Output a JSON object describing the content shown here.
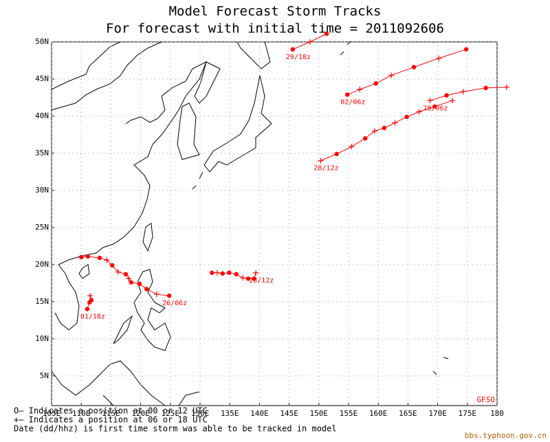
{
  "chart_data": {
    "type": "line",
    "title": "Model Forecast Storm Tracks",
    "subtitle": "For forecast with initial time = 2011092606",
    "xlim": [
      105,
      180
    ],
    "ylim": [
      1,
      50
    ],
    "xticks": [
      {
        "value": 105,
        "label": "105E"
      },
      {
        "value": 110,
        "label": "110E"
      },
      {
        "value": 115,
        "label": "115E"
      },
      {
        "value": 120,
        "label": "120E"
      },
      {
        "value": 125,
        "label": "125E"
      },
      {
        "value": 130,
        "label": "130E"
      },
      {
        "value": 135,
        "label": "135E"
      },
      {
        "value": 140,
        "label": "140E"
      },
      {
        "value": 145,
        "label": "145E"
      },
      {
        "value": 150,
        "label": "150E"
      },
      {
        "value": 155,
        "label": "155E"
      },
      {
        "value": 160,
        "label": "160E"
      },
      {
        "value": 165,
        "label": "165E"
      },
      {
        "value": 170,
        "label": "170E"
      },
      {
        "value": 175,
        "label": "175E"
      },
      {
        "value": 180,
        "label": "180"
      }
    ],
    "yticks": [
      {
        "value": 5,
        "label": "5N"
      },
      {
        "value": 10,
        "label": "10N"
      },
      {
        "value": 15,
        "label": "15N"
      },
      {
        "value": 20,
        "label": "20N"
      },
      {
        "value": 25,
        "label": "25N"
      },
      {
        "value": 30,
        "label": "30N"
      },
      {
        "value": 35,
        "label": "35N"
      },
      {
        "value": 40,
        "label": "40N"
      },
      {
        "value": 45,
        "label": "45N"
      },
      {
        "value": 50,
        "label": "50N"
      }
    ],
    "grid": true,
    "series": [
      {
        "label": "29/18z",
        "color": "#ff0000",
        "x": [
          145.6,
          148.5,
          151.3
        ],
        "values": [
          49.0,
          50.0,
          51.1
        ],
        "markers": [
          "dot",
          "plus",
          "dot"
        ]
      },
      {
        "label": "02/06z",
        "color": "#ff0000",
        "x": [
          154.8,
          156.9,
          159.6,
          162.2,
          166.0,
          170.2,
          174.8
        ],
        "values": [
          42.9,
          43.6,
          44.4,
          45.5,
          46.6,
          47.8,
          49.0
        ],
        "markers": [
          "dot",
          "plus",
          "dot",
          "plus",
          "dot",
          "plus",
          "dot"
        ]
      },
      {
        "label": "28/12z",
        "color": "#ff0000",
        "x": [
          150.3,
          153.0,
          155.5,
          157.8,
          159.4,
          161.0,
          162.8,
          164.8,
          166.9,
          169.5,
          172.5
        ],
        "values": [
          34.0,
          34.9,
          35.9,
          37.0,
          38.0,
          38.4,
          39.1,
          39.9,
          40.6,
          41.3,
          42.1
        ],
        "markers": [
          "plus",
          "dot",
          "plus",
          "dot",
          "plus",
          "dot",
          "plus",
          "dot",
          "plus",
          "dot",
          "plus"
        ]
      },
      {
        "label": "28/06z",
        "color": "#ff0000",
        "x": [
          168.7,
          171.5,
          174.3,
          178.1,
          181.6
        ],
        "values": [
          42.1,
          42.8,
          43.3,
          43.8,
          43.9
        ],
        "markers": [
          "plus",
          "dot",
          "plus",
          "dot",
          "plus"
        ]
      },
      {
        "label": "26/06z",
        "color": "#ff0000",
        "x": [
          124.8,
          122.7,
          121.0,
          119.8,
          118.4,
          118.0,
          117.5,
          116.2,
          115.2,
          114.3,
          113.1,
          111.1,
          110.0
        ],
        "values": [
          15.8,
          16.0,
          16.7,
          17.4,
          17.6,
          18.1,
          18.7,
          19.0,
          19.9,
          20.6,
          20.9,
          21.1,
          21.0
        ],
        "markers": [
          "dot",
          "plus",
          "dot",
          "dot",
          "dot",
          "plus",
          "dot",
          "plus",
          "dot",
          "plus",
          "dot",
          "dot",
          "dot"
        ]
      },
      {
        "label": "28/12z",
        "color": "#ff0000",
        "x": [
          139.4,
          139.1,
          138.1,
          137.2,
          136.1,
          134.9,
          133.8,
          132.9,
          132.0
        ],
        "values": [
          18.9,
          18.1,
          18.1,
          18.2,
          18.7,
          18.9,
          18.8,
          18.9,
          18.9
        ],
        "markers": [
          "plus",
          "dot",
          "dot",
          "plus",
          "dot",
          "dot",
          "dot",
          "plus",
          "dot"
        ]
      },
      {
        "label": "01/18z",
        "color": "#ff0000",
        "x": [
          111.0,
          111.4,
          111.7,
          111.5
        ],
        "values": [
          14.0,
          14.9,
          15.2,
          15.8
        ],
        "markers": [
          "dot",
          "dot",
          "dot",
          "plus"
        ]
      }
    ],
    "notes": [
      "O— Indicates a position at 00 or 12 UTC",
      "+— Indicates a position at 06 or 18 UTC",
      "Date (dd/hhz) is first time storm was able to be tracked in model"
    ],
    "source": "GFSO",
    "credit": "bbs.typhoon.gov.cn"
  }
}
